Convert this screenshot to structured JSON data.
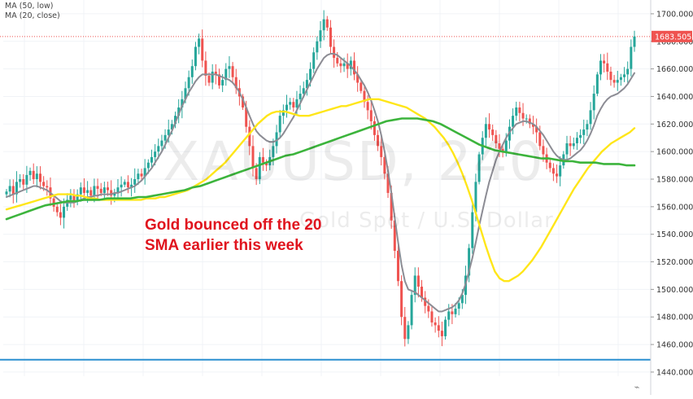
{
  "legend": {
    "ma50": "MA (50, low)",
    "ma20": "MA (20, close)"
  },
  "watermark": {
    "symbol": "XAUUSD, 240",
    "description": "Gold Spot / U.S. Dollar"
  },
  "annotation": {
    "line1": "Gold bounced off the 20",
    "line2": "SMA earlier this week"
  },
  "price_tag": "1683.505",
  "chart_data": {
    "type": "candlestick",
    "symbol": "XAUUSD",
    "timeframe": "240",
    "ylim": [
      1437,
      1710
    ],
    "y_ticks": [
      "1440.000",
      "1460.000",
      "1480.000",
      "1500.000",
      "1520.000",
      "1540.000",
      "1560.000",
      "1580.000",
      "1600.000",
      "1620.000",
      "1640.000",
      "1660.000",
      "1680.000",
      "1700.000"
    ],
    "last_price": 1683.505,
    "horizontal_line": 1449,
    "grid": true,
    "colors": {
      "up": "#26a69a",
      "down": "#ef5350",
      "ma_fast": "#8c8c94",
      "ma_yellow": "#ffe619",
      "ma_green": "#3cb43c",
      "support_line": "#2a8fd0",
      "price_line": "#ef5350",
      "annotation": "#e0141e"
    },
    "closes": [
      1571,
      1575,
      1569,
      1578,
      1580,
      1576,
      1583,
      1586,
      1580,
      1584,
      1578,
      1575,
      1574,
      1566,
      1560,
      1556,
      1552,
      1560,
      1565,
      1568,
      1564,
      1569,
      1574,
      1570,
      1572,
      1568,
      1575,
      1573,
      1570,
      1574,
      1572,
      1568,
      1570,
      1574,
      1576,
      1578,
      1574,
      1576,
      1580,
      1584,
      1582,
      1588,
      1592,
      1596,
      1600,
      1604,
      1608,
      1612,
      1616,
      1620,
      1626,
      1632,
      1638,
      1646,
      1654,
      1662,
      1676,
      1682,
      1666,
      1655,
      1650,
      1658,
      1656,
      1648,
      1652,
      1660,
      1662,
      1654,
      1646,
      1640,
      1632,
      1618,
      1604,
      1588,
      1580,
      1596,
      1592,
      1590,
      1596,
      1604,
      1614,
      1626,
      1630,
      1634,
      1636,
      1632,
      1638,
      1642,
      1646,
      1652,
      1660,
      1672,
      1680,
      1688,
      1696,
      1690,
      1676,
      1668,
      1664,
      1662,
      1664,
      1660,
      1666,
      1656,
      1650,
      1644,
      1636,
      1630,
      1622,
      1612,
      1604,
      1596,
      1584,
      1570,
      1550,
      1528,
      1506,
      1480,
      1464,
      1474,
      1496,
      1510,
      1502,
      1494,
      1488,
      1484,
      1476,
      1474,
      1470,
      1466,
      1478,
      1484,
      1482,
      1486,
      1490,
      1496,
      1510,
      1530,
      1556,
      1578,
      1598,
      1610,
      1620,
      1616,
      1612,
      1606,
      1602,
      1600,
      1608,
      1618,
      1626,
      1632,
      1628,
      1624,
      1624,
      1620,
      1618,
      1614,
      1604,
      1598,
      1592,
      1588,
      1584,
      1582,
      1590,
      1598,
      1606,
      1604,
      1606,
      1610,
      1612,
      1616,
      1620,
      1630,
      1642,
      1656,
      1666,
      1664,
      1658,
      1652,
      1650,
      1652,
      1654,
      1656,
      1660,
      1676,
      1683.5
    ],
    "series": [
      {
        "name": "MA (20, close)",
        "values": [
          1567,
          1568,
          1569,
          1570,
          1571,
          1572,
          1573,
          1574,
          1575,
          1575,
          1574,
          1573,
          1572,
          1570,
          1568,
          1566,
          1564,
          1563,
          1563,
          1563,
          1563,
          1564,
          1565,
          1566,
          1567,
          1567,
          1568,
          1568,
          1569,
          1569,
          1569,
          1569,
          1570,
          1570,
          1571,
          1572,
          1573,
          1574,
          1575,
          1577,
          1579,
          1582,
          1585,
          1588,
          1592,
          1596,
          1600,
          1605,
          1610,
          1615,
          1621,
          1627,
          1633,
          1638,
          1643,
          1647,
          1651,
          1654,
          1656,
          1656,
          1656,
          1656,
          1656,
          1655,
          1654,
          1653,
          1652,
          1650,
          1647,
          1643,
          1638,
          1632,
          1626,
          1620,
          1615,
          1612,
          1610,
          1608,
          1607,
          1607,
          1608,
          1610,
          1613,
          1617,
          1621,
          1625,
          1630,
          1635,
          1640,
          1645,
          1650,
          1655,
          1660,
          1664,
          1668,
          1670,
          1671,
          1671,
          1670,
          1668,
          1666,
          1664,
          1662,
          1659,
          1656,
          1652,
          1648,
          1643,
          1637,
          1630,
          1622,
          1612,
          1600,
          1586,
          1570,
          1552,
          1534,
          1518,
          1506,
          1500,
          1499,
          1498,
          1496,
          1494,
          1492,
          1490,
          1488,
          1486,
          1484,
          1484,
          1485,
          1486,
          1487,
          1489,
          1492,
          1497,
          1504,
          1513,
          1523,
          1534,
          1546,
          1557,
          1568,
          1578,
          1586,
          1594,
          1600,
          1605,
          1610,
          1614,
          1617,
          1620,
          1621,
          1622,
          1622,
          1621,
          1620,
          1618,
          1615,
          1612,
          1608,
          1604,
          1600,
          1597,
          1595,
          1594,
          1594,
          1595,
          1597,
          1599,
          1601,
          1604,
          1608,
          1613,
          1619,
          1626,
          1631,
          1635,
          1638,
          1640,
          1641,
          1642,
          1644,
          1646,
          1649,
          1653,
          1657
        ]
      },
      {
        "name": "MA (50, low)",
        "values": [
          1558,
          1559,
          1560,
          1561,
          1562,
          1563,
          1564,
          1565,
          1566,
          1567,
          1568,
          1569,
          1569,
          1569,
          1569,
          1568,
          1568,
          1567,
          1566,
          1566,
          1565,
          1565,
          1565,
          1565,
          1565,
          1565,
          1565,
          1565,
          1565,
          1565,
          1566,
          1566,
          1566,
          1567,
          1567,
          1568,
          1569,
          1570,
          1571,
          1572,
          1574,
          1576,
          1578,
          1580,
          1583,
          1586,
          1589,
          1592,
          1596,
          1600,
          1604,
          1608,
          1612,
          1616,
          1620,
          1623,
          1626,
          1628,
          1629,
          1629,
          1629,
          1628,
          1627,
          1626,
          1626,
          1626,
          1627,
          1628,
          1629,
          1630,
          1631,
          1632,
          1633,
          1633,
          1634,
          1635,
          1636,
          1637,
          1638,
          1638,
          1638,
          1637,
          1636,
          1635,
          1634,
          1633,
          1632,
          1630,
          1628,
          1626,
          1624,
          1621,
          1618,
          1614,
          1610,
          1605,
          1599,
          1592,
          1584,
          1575,
          1565,
          1554,
          1543,
          1532,
          1522,
          1513,
          1508,
          1506,
          1506,
          1508,
          1510,
          1513,
          1517,
          1521,
          1526,
          1531,
          1537,
          1543,
          1549,
          1555,
          1561,
          1567,
          1573,
          1578,
          1583,
          1588,
          1592,
          1596,
          1600,
          1603,
          1606,
          1608,
          1610,
          1612,
          1614,
          1617
        ]
      },
      {
        "name": "MA (200)",
        "values": [
          1551,
          1553,
          1555,
          1557,
          1559,
          1561,
          1562,
          1563,
          1564,
          1564,
          1565,
          1565,
          1565,
          1566,
          1566,
          1566,
          1566,
          1567,
          1567,
          1568,
          1569,
          1570,
          1571,
          1572,
          1574,
          1575,
          1577,
          1579,
          1581,
          1583,
          1585,
          1587,
          1589,
          1591,
          1593,
          1595,
          1597,
          1598,
          1600,
          1602,
          1604,
          1606,
          1608,
          1610,
          1612,
          1614,
          1616,
          1618,
          1620,
          1622,
          1623,
          1624,
          1624,
          1624,
          1623,
          1622,
          1620,
          1617,
          1614,
          1611,
          1608,
          1605,
          1603,
          1601,
          1600,
          1599,
          1598,
          1597,
          1596,
          1595,
          1595,
          1594,
          1593,
          1593,
          1592,
          1592,
          1592,
          1591,
          1591,
          1591,
          1590,
          1590
        ]
      }
    ]
  }
}
